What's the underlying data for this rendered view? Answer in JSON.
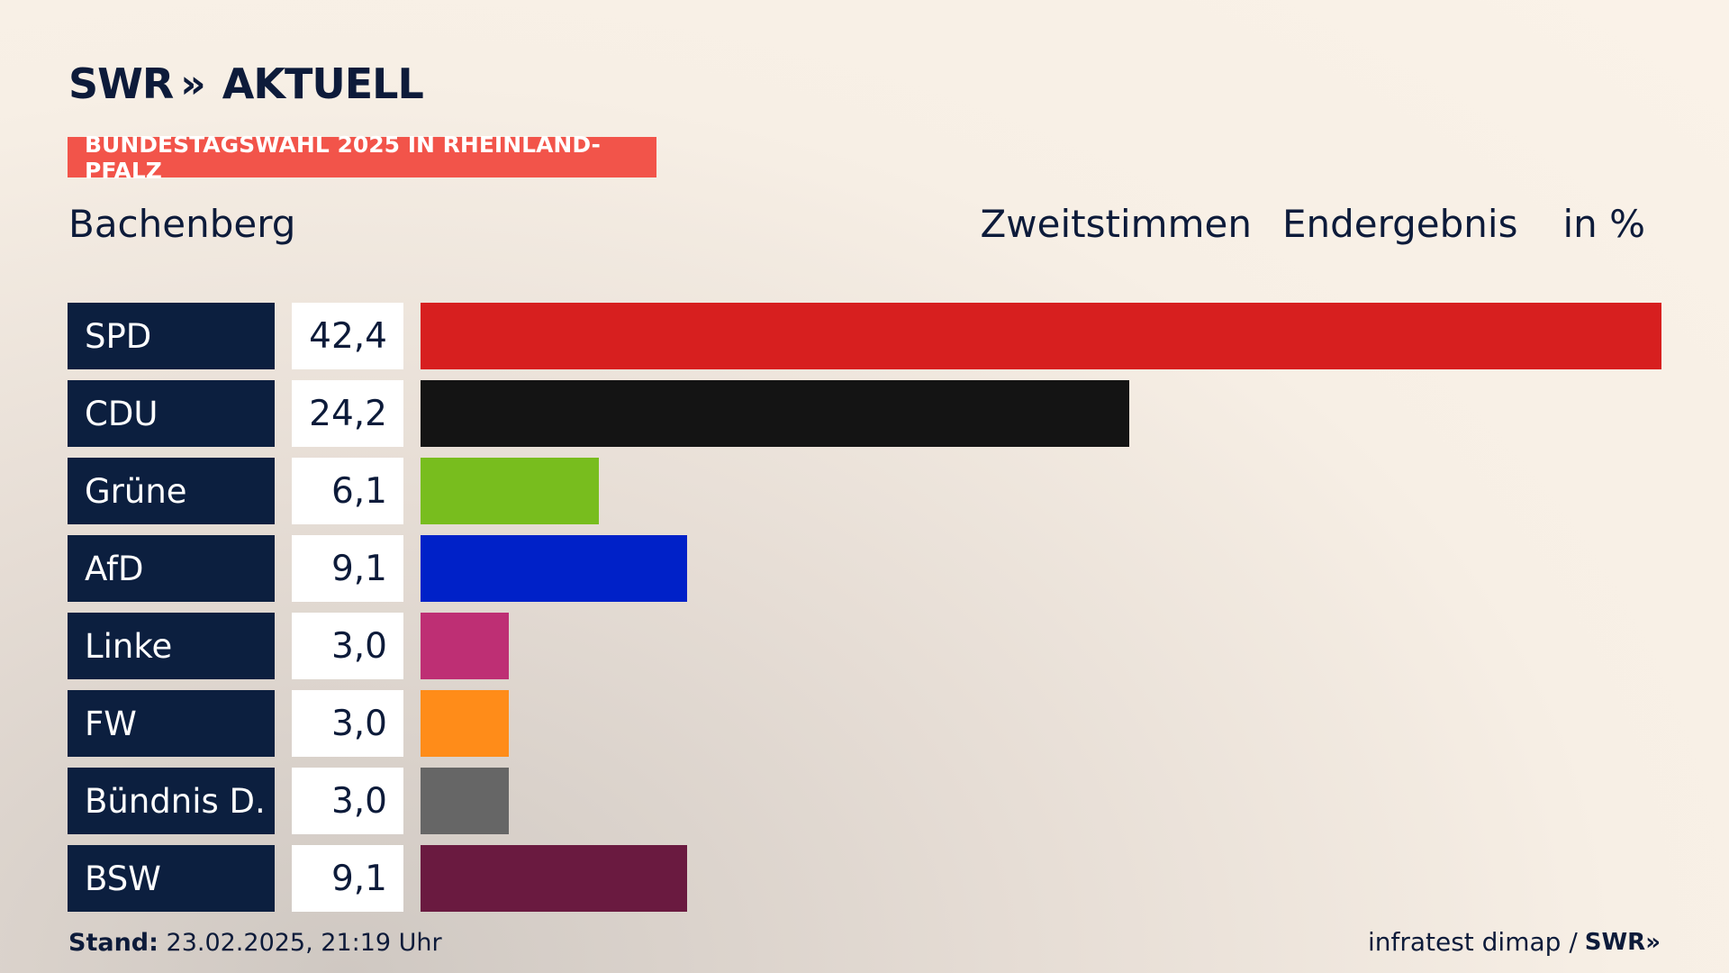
{
  "header": {
    "logo_brand": "SWR",
    "logo_chevrons": "»",
    "logo_product": "AKTUELL",
    "banner": "BUNDESTAGSWAHL 2025 IN RHEINLAND-PFALZ",
    "location": "Bachenberg",
    "vote_type": "Zweitstimmen",
    "result_status": "Endergebnis",
    "unit": "in %"
  },
  "chart_data": {
    "type": "bar",
    "orientation": "horizontal",
    "categories": [
      "SPD",
      "CDU",
      "Grüne",
      "AfD",
      "Linke",
      "FW",
      "Bündnis D.",
      "BSW"
    ],
    "values": [
      42.4,
      24.2,
      6.1,
      9.1,
      3.0,
      3.0,
      3.0,
      9.1
    ],
    "value_labels": [
      "42,4",
      "24,2",
      "6,1",
      "9,1",
      "3,0",
      "3,0",
      "3,0",
      "9,1"
    ],
    "colors": [
      "#d71f1f",
      "#141414",
      "#78bd1e",
      "#0021c8",
      "#be2f74",
      "#ff8c19",
      "#666666",
      "#6a1a40"
    ],
    "xlim": [
      0,
      42.4
    ],
    "grid": false
  },
  "footer": {
    "stand_label": "Stand:",
    "stand_value": "23.02.2025, 21:19 Uhr",
    "source": "infratest dimap /",
    "source_brand": "SWR»"
  }
}
